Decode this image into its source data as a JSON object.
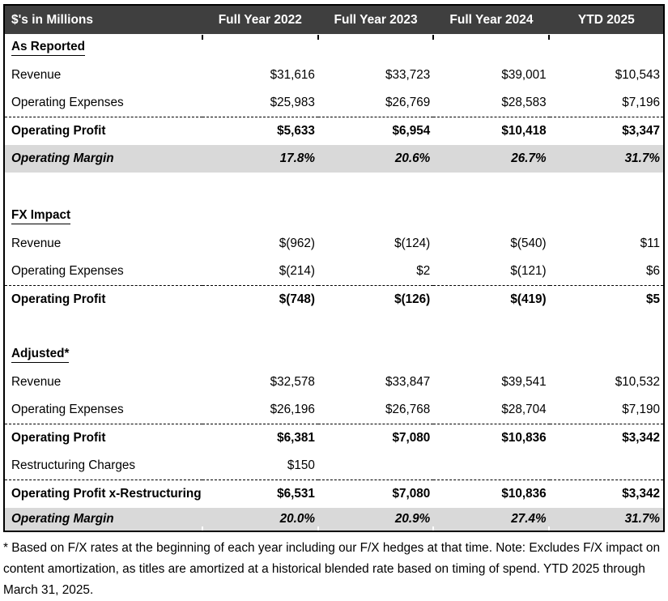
{
  "table": {
    "header": {
      "label": "$'s in Millions",
      "columns": [
        "Full Year 2022",
        "Full Year 2023",
        "Full Year 2024",
        "YTD 2025"
      ]
    },
    "sections": [
      {
        "heading": "As Reported",
        "rows": [
          {
            "label": "Revenue",
            "values": [
              "$31,616",
              "$33,723",
              "$39,001",
              "$10,543"
            ]
          },
          {
            "label": "Operating Expenses",
            "values": [
              "$25,983",
              "$26,769",
              "$28,583",
              "$7,196"
            ]
          },
          {
            "label": "Operating Profit",
            "values": [
              "$5,633",
              "$6,954",
              "$10,418",
              "$3,347"
            ]
          },
          {
            "label": "Operating Margin",
            "values": [
              "17.8%",
              "20.6%",
              "26.7%",
              "31.7%"
            ]
          }
        ]
      },
      {
        "heading": "FX Impact",
        "rows": [
          {
            "label": "Revenue",
            "values": [
              "$(962)",
              "$(124)",
              "$(540)",
              "$11"
            ]
          },
          {
            "label": "Operating Expenses",
            "values": [
              "$(214)",
              "$2",
              "$(121)",
              "$6"
            ]
          },
          {
            "label": "Operating Profit",
            "values": [
              "$(748)",
              "$(126)",
              "$(419)",
              "$5"
            ]
          }
        ]
      },
      {
        "heading": "Adjusted*",
        "rows": [
          {
            "label": "Revenue",
            "values": [
              "$32,578",
              "$33,847",
              "$39,541",
              "$10,532"
            ]
          },
          {
            "label": "Operating Expenses",
            "values": [
              "$26,196",
              "$26,768",
              "$28,704",
              "$7,190"
            ]
          },
          {
            "label": "Operating Profit",
            "values": [
              "$6,381",
              "$7,080",
              "$10,836",
              "$3,342"
            ]
          },
          {
            "label": "Restructuring Charges",
            "values": [
              "$150",
              "",
              "",
              ""
            ]
          },
          {
            "label": "Operating Profit x-Restructuring",
            "values": [
              "$6,531",
              "$7,080",
              "$10,836",
              "$3,342"
            ]
          },
          {
            "label": "Operating Margin",
            "values": [
              "20.0%",
              "20.9%",
              "27.4%",
              "31.7%"
            ]
          }
        ]
      }
    ]
  },
  "footnote": "* Based on F/X rates at the beginning of each year including our F/X hedges at that time. Note: Excludes F/X impact on content amortization, as titles are amortized at a historical blended rate based on timing of spend. YTD 2025 through March 31, 2025.",
  "colors": {
    "header_bg": "#3F3F3F",
    "header_text": "#FFFFFF",
    "margin_row_bg": "#D9D9D9",
    "border": "#000000"
  }
}
